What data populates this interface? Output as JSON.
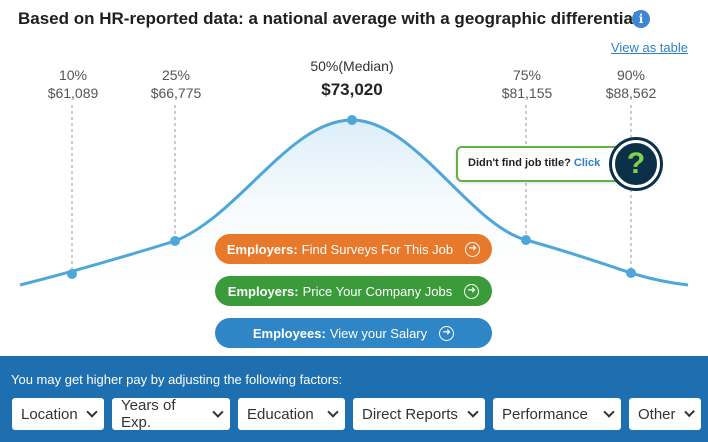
{
  "header": {
    "title": "Based on HR-reported data: a national average with a geographic differential",
    "view_table": "View as table"
  },
  "chart_data": {
    "type": "line",
    "title": "Based on HR-reported data: a national average with a geographic differential",
    "points": [
      {
        "percentile": "10%",
        "value": "$61,089"
      },
      {
        "percentile": "25%",
        "value": "$66,775"
      },
      {
        "percentile": "50%(Median)",
        "value": "$73,020"
      },
      {
        "percentile": "75%",
        "value": "$81,155"
      },
      {
        "percentile": "90%",
        "value": "$88,562"
      }
    ]
  },
  "callout": {
    "text": "Didn't find job title?",
    "link": "Click"
  },
  "actions": {
    "employers_surveys": {
      "bold": "Employers:",
      "text": "Find Surveys For This Job"
    },
    "employers_price": {
      "bold": "Employers:",
      "text": "Price Your Company Jobs"
    },
    "employees_salary": {
      "bold": "Employees:",
      "text": "View your Salary"
    }
  },
  "factors": {
    "heading": "You may get higher pay by adjusting the following factors:",
    "dropdowns": [
      "Location",
      "Years of Exp.",
      "Education",
      "Direct Reports",
      "Performance",
      "Other"
    ]
  },
  "colors": {
    "curve": "#4ea7d8",
    "orange": "#e8782a",
    "green": "#3b9b3a",
    "blue": "#2f86c6",
    "bar": "#1d6fb0"
  }
}
